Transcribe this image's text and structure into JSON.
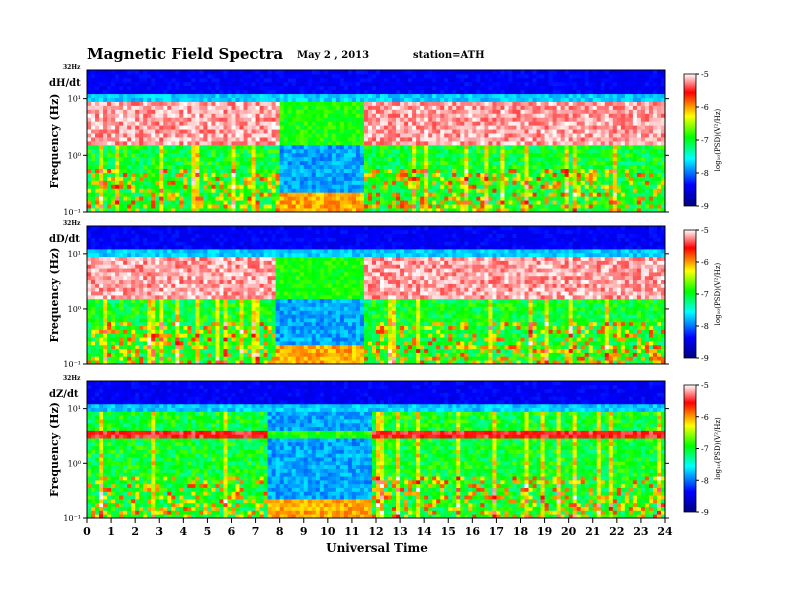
{
  "chart_data": {
    "type": "heatmap",
    "title": "Magnetic Field Spectra",
    "date": "May 2 , 2013",
    "station": "station=ATH",
    "xlabel": "Universal Time",
    "x_ticks": [
      "0",
      "1",
      "2",
      "3",
      "4",
      "5",
      "6",
      "7",
      "8",
      "9",
      "10",
      "11",
      "12",
      "13",
      "14",
      "15",
      "16",
      "17",
      "18",
      "19",
      "20",
      "21",
      "22",
      "23",
      "24"
    ],
    "xlim": [
      0,
      24
    ],
    "panels": [
      {
        "name": "dH/dt",
        "ylabel": "Frequency (Hz)",
        "top_label": "32Hz",
        "y_ticks": [
          "10¹",
          "10⁰",
          "10⁻¹"
        ],
        "ylim": [
          0.1,
          32
        ],
        "scale": "log",
        "colorbar_label": "log₁₀(PSD)(V²/Hz)",
        "colorbar_ticks": [
          "-5",
          "-6",
          "-7",
          "-8",
          "-9"
        ],
        "clim": [
          -9,
          -5
        ],
        "quiet_interval": [
          8.0,
          11.5
        ],
        "red_band_hz": [
          1.5,
          9.0
        ],
        "red_band_strength": 1.0
      },
      {
        "name": "dD/dt",
        "ylabel": "Frequency (Hz)",
        "top_label": "32Hz",
        "y_ticks": [
          "10¹",
          "10⁰",
          "10⁻¹"
        ],
        "ylim": [
          0.1,
          32
        ],
        "scale": "log",
        "colorbar_label": "log₁₀(PSD)(V²/Hz)",
        "colorbar_ticks": [
          "-5",
          "-6",
          "-7",
          "-8",
          "-9"
        ],
        "clim": [
          -9,
          -5
        ],
        "quiet_interval": [
          7.8,
          11.5
        ],
        "red_band_hz": [
          1.5,
          9.0
        ],
        "red_band_strength": 1.0
      },
      {
        "name": "dZ/dt",
        "ylabel": "Frequency (Hz)",
        "top_label": "32Hz",
        "y_ticks": [
          "10¹",
          "10⁰",
          "10⁻¹"
        ],
        "ylim": [
          0.1,
          32
        ],
        "scale": "log",
        "colorbar_label": "log₁₀(PSD)(V²/Hz)",
        "colorbar_ticks": [
          "-5",
          "-6",
          "-7",
          "-8",
          "-9"
        ],
        "clim": [
          -9,
          -5
        ],
        "quiet_interval": [
          7.5,
          11.8
        ],
        "red_band_hz": [
          2.8,
          3.8
        ],
        "red_band_strength": 0.6
      }
    ],
    "colormap": [
      "#000080",
      "#0000ff",
      "#00ffff",
      "#00ff00",
      "#ffff00",
      "#ff0000",
      "#ffffff"
    ]
  }
}
